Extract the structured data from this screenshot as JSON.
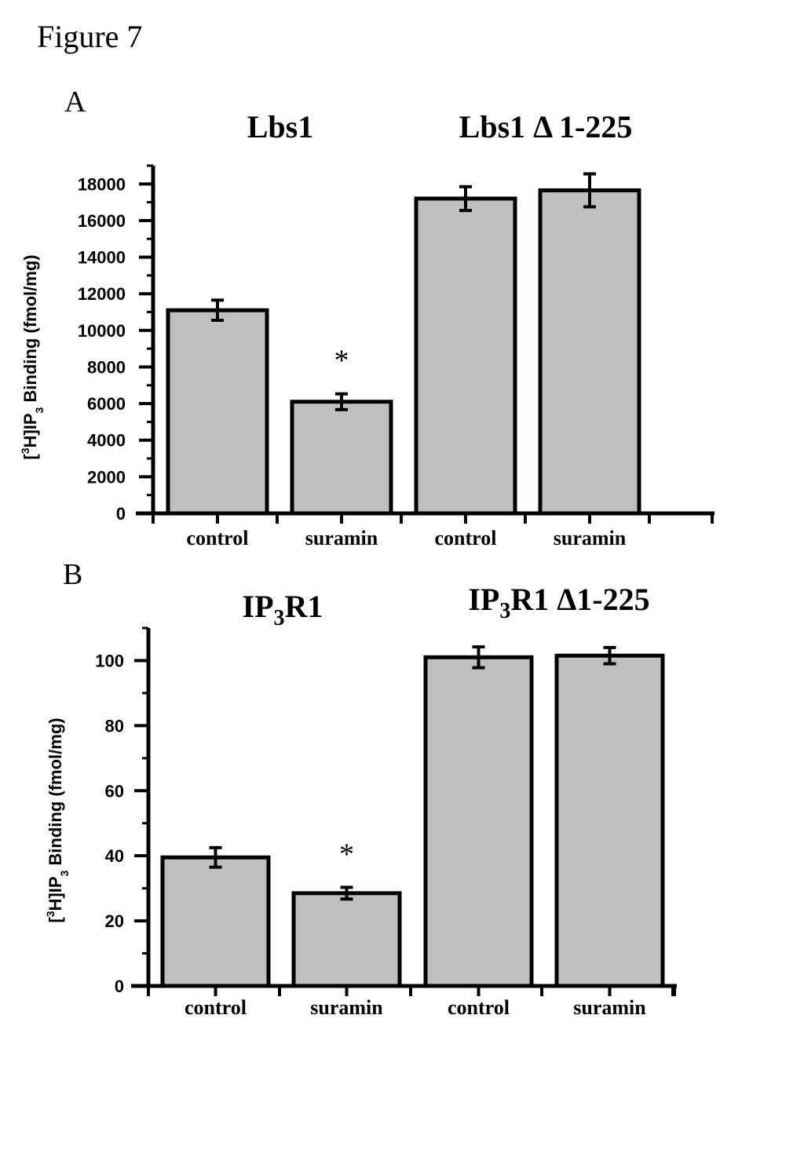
{
  "figure_label": "Figure 7",
  "colors": {
    "bar_fill": "#c0c0c0",
    "stroke": "#000000"
  },
  "chart_data": [
    {
      "type": "bar",
      "panel_label": "A",
      "group_titles": [
        {
          "text": "Lbs1"
        },
        {
          "text": "Lbs1 Δ 1-225"
        }
      ],
      "ylabel": {
        "pre": "[",
        "sup": "3",
        "mid": "H]IP",
        "sub": "3",
        "post": " Binding (fmol/mg)"
      },
      "ylim": [
        0,
        19000
      ],
      "yticks": [
        0,
        2000,
        4000,
        6000,
        8000,
        10000,
        12000,
        14000,
        16000,
        18000
      ],
      "yticks_minor_step": 1000,
      "categories": [
        "control",
        "suramin",
        "control",
        "suramin"
      ],
      "values": [
        11100,
        6100,
        17200,
        17650
      ],
      "errors": [
        550,
        430,
        650,
        900
      ],
      "significance": [
        "",
        "*",
        "",
        ""
      ],
      "grid": false,
      "legend": "none"
    },
    {
      "type": "bar",
      "panel_label": "B",
      "group_titles": [
        {
          "pre": "IP",
          "sub": "3",
          "post": "R1"
        },
        {
          "pre": "IP",
          "sub": "3",
          "post": "R1 Δ1-225"
        }
      ],
      "ylabel": {
        "pre": "[",
        "sup": "3",
        "mid": "H]IP",
        "sub": "3",
        "post": " Binding (fmol/mg)"
      },
      "ylim": [
        0,
        110
      ],
      "yticks": [
        0,
        20,
        40,
        60,
        80,
        100
      ],
      "yticks_minor_step": 10,
      "categories": [
        "control",
        "suramin",
        "control",
        "suramin"
      ],
      "values": [
        39.5,
        28.5,
        101,
        101.5
      ],
      "errors": [
        3,
        1.8,
        3.2,
        2.5
      ],
      "significance": [
        "",
        "*",
        "",
        ""
      ],
      "grid": false,
      "legend": "none"
    }
  ]
}
